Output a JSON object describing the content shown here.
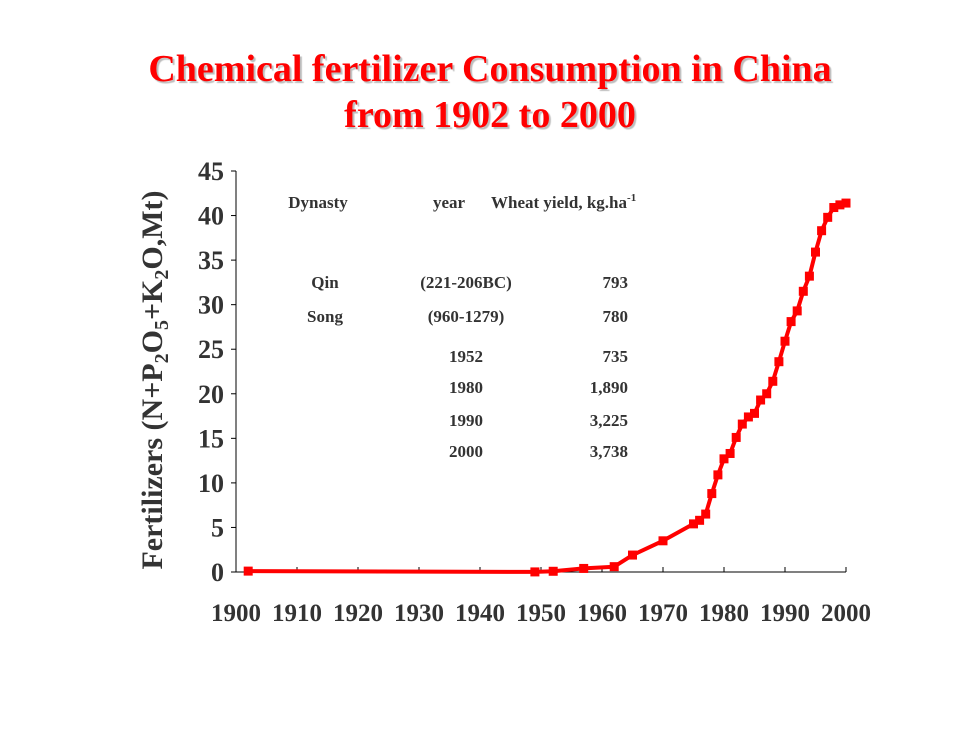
{
  "title": {
    "line1": "Chemical fertilizer Consumption in China",
    "line2": "from 1902 to 2000"
  },
  "colors": {
    "title": "#ff0000",
    "series": "#ff0000",
    "text": "#333333"
  },
  "chart_data": {
    "type": "line",
    "title": "Chemical fertilizer Consumption in China from 1902 to 2000",
    "ylabel": "Fertilizers (N+P2O5+K2O,Mt)",
    "ylabel_parts": [
      "Fertilizers (N+P",
      "2",
      "O",
      "5",
      "+K",
      "2",
      "O,Mt)"
    ],
    "xlabel": "",
    "xlim": [
      1900,
      2000
    ],
    "ylim": [
      0,
      45
    ],
    "x_ticks": [
      1900,
      1910,
      1920,
      1930,
      1940,
      1950,
      1960,
      1970,
      1980,
      1990,
      2000
    ],
    "x_tick_labels": [
      "1900",
      "1910",
      "1920",
      "1930",
      "1940",
      "1950",
      "1960",
      "1970",
      "1980",
      "1990",
      "2000"
    ],
    "y_ticks": [
      0,
      5,
      10,
      15,
      20,
      25,
      30,
      35,
      40,
      45
    ],
    "y_tick_labels": [
      "0",
      "5",
      "10",
      "15",
      "20",
      "25",
      "30",
      "35",
      "40",
      "45"
    ],
    "grid": false,
    "marker": "square",
    "series": [
      {
        "points": [
          [
            1902,
            0.1
          ],
          [
            1949,
            0.01
          ],
          [
            1952,
            0.08
          ],
          [
            1957,
            0.4
          ],
          [
            1962,
            0.6
          ],
          [
            1965,
            1.9
          ],
          [
            1970,
            3.5
          ],
          [
            1975,
            5.4
          ],
          [
            1976,
            5.8
          ],
          [
            1977,
            6.5
          ],
          [
            1978,
            8.8
          ],
          [
            1979,
            10.9
          ],
          [
            1980,
            12.7
          ],
          [
            1981,
            13.3
          ],
          [
            1982,
            15.1
          ],
          [
            1983,
            16.6
          ],
          [
            1984,
            17.4
          ],
          [
            1985,
            17.8
          ],
          [
            1986,
            19.3
          ],
          [
            1987,
            20.0
          ],
          [
            1988,
            21.4
          ],
          [
            1989,
            23.6
          ],
          [
            1990,
            25.9
          ],
          [
            1991,
            28.1
          ],
          [
            1992,
            29.3
          ],
          [
            1993,
            31.5
          ],
          [
            1994,
            33.2
          ],
          [
            1995,
            35.9
          ],
          [
            1996,
            38.3
          ],
          [
            1997,
            39.8
          ],
          [
            1998,
            40.9
          ],
          [
            1999,
            41.2
          ],
          [
            2000,
            41.4
          ]
        ]
      }
    ],
    "annotation_table": {
      "headers": {
        "dynasty": "Dynasty",
        "year": "year",
        "yield": "Wheat yield, kg.ha",
        "yield_sup": "-1"
      },
      "rows": [
        {
          "dynasty": "Qin",
          "year": "(221-206BC)",
          "yield": "793"
        },
        {
          "dynasty": "Song",
          "year": "(960-1279)",
          "yield": "780"
        },
        {
          "dynasty": "",
          "year": "1952",
          "yield": "735"
        },
        {
          "dynasty": "",
          "year": "1980",
          "yield": "1,890"
        },
        {
          "dynasty": "",
          "year": "1990",
          "yield": "3,225"
        },
        {
          "dynasty": "",
          "year": "2000",
          "yield": "3,738"
        }
      ]
    }
  }
}
